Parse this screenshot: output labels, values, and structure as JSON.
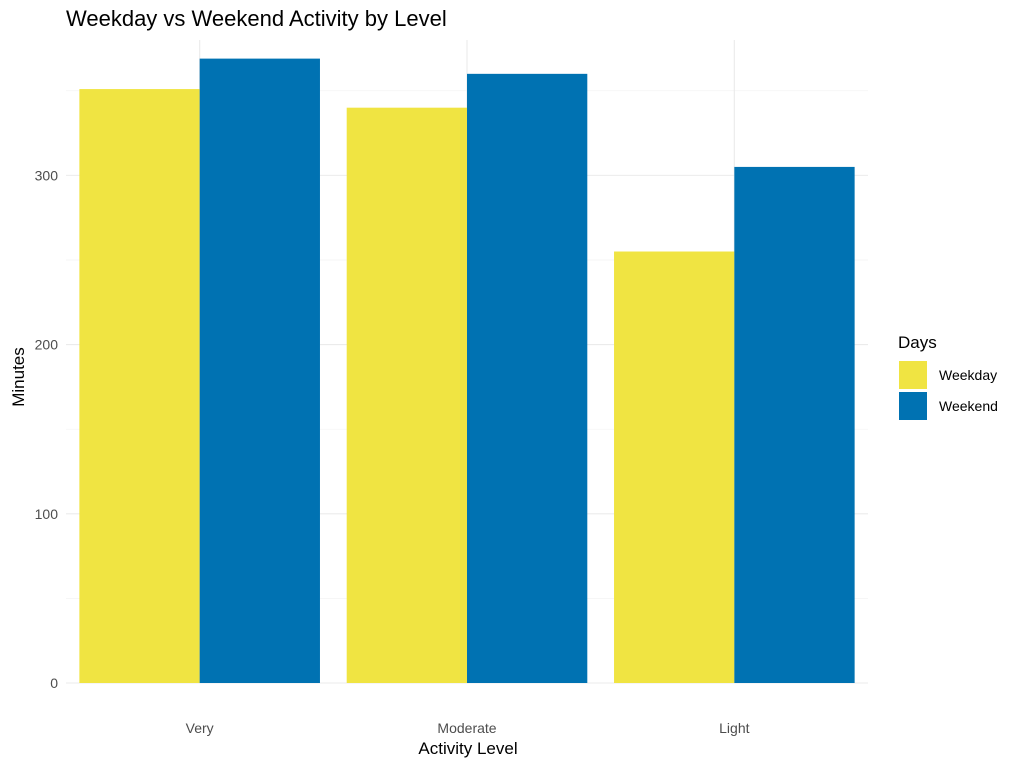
{
  "chart_data": {
    "type": "bar",
    "title": "Weekday vs Weekend Activity by Level",
    "xlabel": "Activity Level",
    "ylabel": "Minutes",
    "categories": [
      "Very",
      "Moderate",
      "Light"
    ],
    "series": [
      {
        "name": "Weekday",
        "color": "#F0E442",
        "values": [
          351,
          340,
          255
        ]
      },
      {
        "name": "Weekend",
        "color": "#0072B2",
        "values": [
          369,
          360,
          305
        ]
      }
    ],
    "y_ticks": [
      "0",
      "100",
      "200",
      "300"
    ],
    "ylim": [
      0,
      380
    ],
    "grid": true,
    "legend": {
      "title": "Days",
      "position": "right"
    }
  }
}
